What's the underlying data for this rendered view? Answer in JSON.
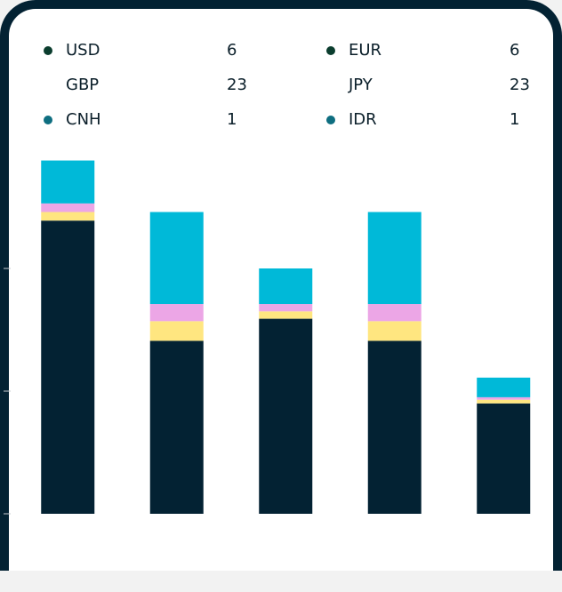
{
  "currencies": [
    {
      "code": "USD",
      "count": 6,
      "color": "#0b3d2e"
    },
    {
      "code": "EUR",
      "count": 6,
      "color": "#0b3d2e"
    },
    {
      "code": "GBP",
      "count": 23,
      "color": null
    },
    {
      "code": "JPY",
      "count": 23,
      "color": null
    },
    {
      "code": "CNH",
      "count": 1,
      "color": "#0e6e80"
    },
    {
      "code": "IDR",
      "count": 1,
      "color": "#0e6e80"
    }
  ],
  "chart_data": {
    "type": "stacked-bar",
    "categories": [
      null,
      null,
      null,
      null,
      null
    ],
    "series": [
      {
        "color": "#032233",
        "values": [
          2.39,
          1.41,
          1.59,
          1.41,
          0.9
        ]
      },
      {
        "color": "#ffe680",
        "values": [
          0.07,
          0.16,
          0.06,
          0.16,
          0.03
        ]
      },
      {
        "color": "#eca6e6",
        "values": [
          0.07,
          0.14,
          0.06,
          0.14,
          0.02
        ]
      },
      {
        "color": "#00b9d8",
        "values": [
          0.35,
          0.75,
          0.29,
          0.75,
          0.16
        ]
      }
    ],
    "ylim": [
      0,
      3
    ],
    "yticks": [
      0,
      1,
      2
    ]
  }
}
